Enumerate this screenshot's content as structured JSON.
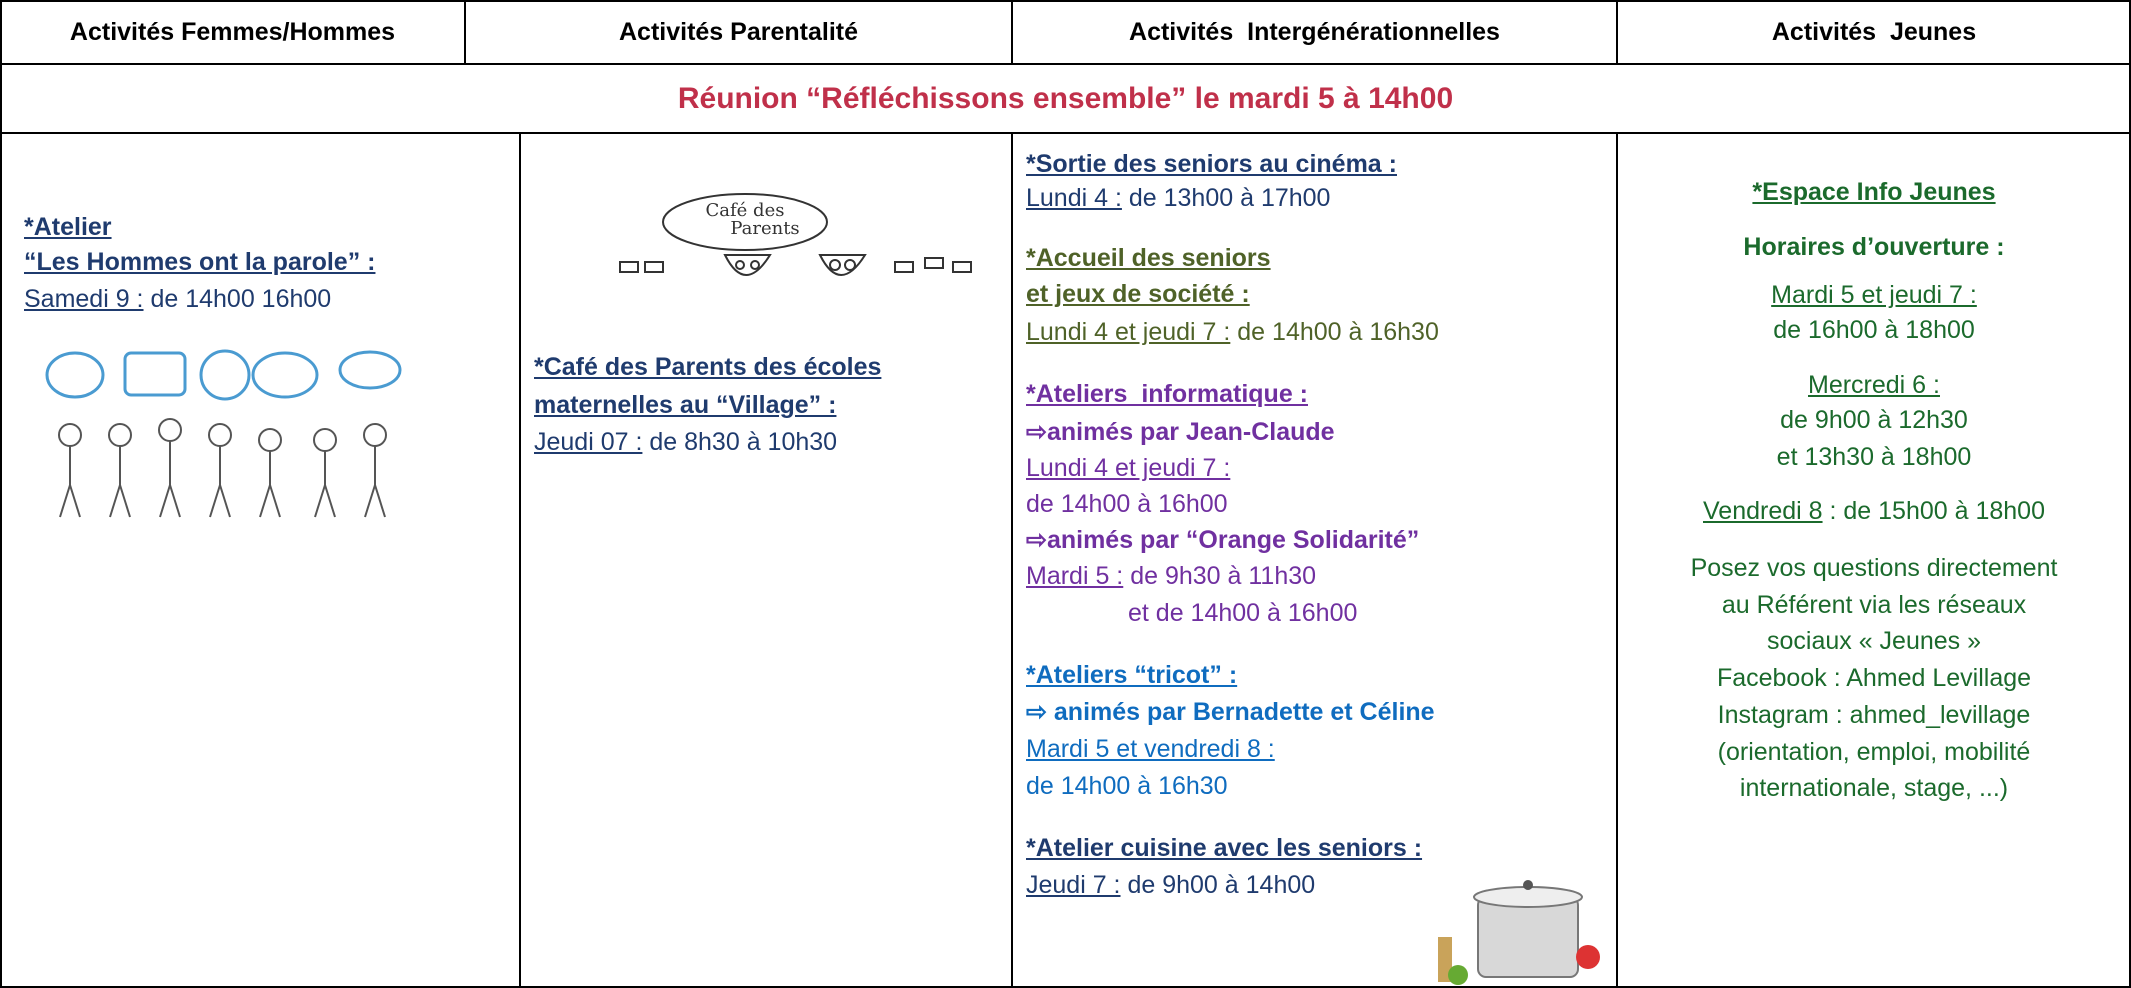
{
  "header": {
    "columns": [
      "Activités Femmes/Hommes",
      "Activités Parentalité",
      "Activités  Intergénérationnelles",
      "Activités  Jeunes"
    ]
  },
  "banner": "Réunion “Réfléchissons ensemble” le mardi 5 à 14h00",
  "femmes_hommes": {
    "title": [
      "*Atelier",
      "“Les Hommes ont la parole” :"
    ],
    "day": "Samedi 9 :",
    "time": "de 14h00 16h00"
  },
  "parentalite": {
    "image_text": [
      "Café des",
      "Parents"
    ],
    "title": [
      "*Café des Parents des écoles",
      "maternelles au “Village” :"
    ],
    "day": "Jeudi 07 :",
    "time": "de 8h30 à 10h30"
  },
  "intergen": {
    "cinema": {
      "title": "*Sortie des seniors au cinéma :",
      "day": "Lundi 4 :",
      "time": "de 13h00 à 17h00"
    },
    "accueil": {
      "title": [
        "*Accueil des seniors",
        "et jeux de société :"
      ],
      "day": "Lundi 4 et jeudi 7 :",
      "time": "de 14h00 à 16h30"
    },
    "informatique": {
      "title": "*Ateliers  informatique :",
      "group1": "⇨animés par Jean-Claude",
      "day1": "Lundi 4 et jeudi 7 :",
      "time1": "de 14h00 à 16h00",
      "group2": "⇨animés par “Orange Solidarité”",
      "day2": "Mardi 5 :",
      "time2a": "de 9h30 à 11h30",
      "time2b": "et de 14h00 à 16h00"
    },
    "tricot": {
      "title": "*Ateliers “tricot” :",
      "group": "⇨ animés par Bernadette et Céline",
      "day": "Mardi 5 et vendredi 8 :",
      "time": "de 14h00 à 16h30"
    },
    "cuisine": {
      "title": "*Atelier cuisine avec les seniors :",
      "day": "Jeudi 7 :",
      "time": "de 9h00 à 14h00"
    }
  },
  "jeunes": {
    "title": "*Espace Info Jeunes",
    "subtitle": "Horaires d’ouverture :",
    "slot1": {
      "day": "Mardi 5 et jeudi 7 :",
      "time": "de 16h00 à 18h00"
    },
    "slot2": {
      "day": "Mercredi 6 :",
      "time": [
        "de 9h00 à 12h30",
        "et 13h30 à 18h00"
      ]
    },
    "slot3": {
      "day": "Vendredi 8",
      "time": ": de 15h00 à 18h00"
    },
    "info": [
      "Posez vos questions directement",
      "au Référent via les réseaux",
      "sociaux « Jeunes »",
      "Facebook : Ahmed Levillage",
      "Instagram : ahmed_levillage",
      "(orientation, emploi, mobilité",
      "internationale, stage, ...)"
    ]
  }
}
